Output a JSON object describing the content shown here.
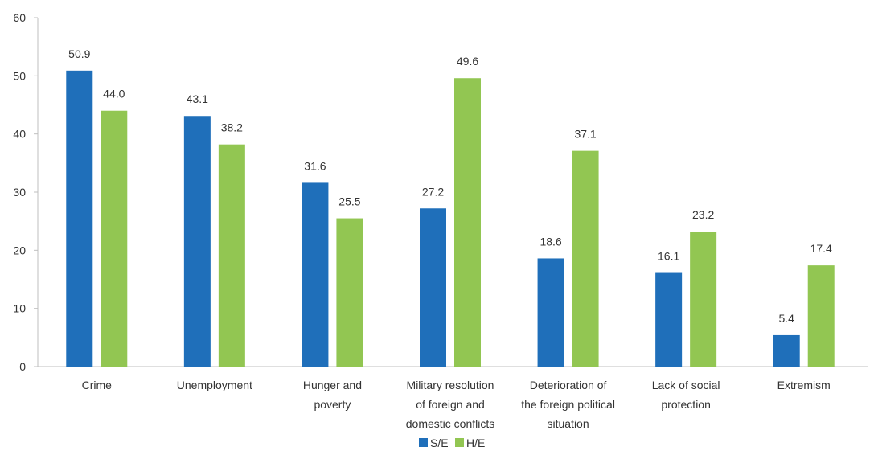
{
  "chart_data": {
    "type": "bar",
    "title": "",
    "xlabel": "",
    "ylabel": "",
    "ylim": [
      0,
      60
    ],
    "yticks": [
      0,
      10,
      20,
      30,
      40,
      50,
      60
    ],
    "grid": false,
    "legend_position": "bottom",
    "categories": [
      [
        "Crime"
      ],
      [
        "Unemployment"
      ],
      [
        "Hunger and",
        "poverty"
      ],
      [
        "Military resolution",
        "of foreign and",
        "domestic conflicts"
      ],
      [
        "Deterioration of",
        "the foreign political",
        "situation"
      ],
      [
        "Lack of social",
        "protection"
      ],
      [
        "Extremism"
      ]
    ],
    "series": [
      {
        "name": "S/E",
        "color": "#1f6fba",
        "values": [
          50.9,
          43.1,
          31.6,
          27.2,
          18.6,
          16.1,
          5.4
        ],
        "labels": [
          "50.9",
          "43.1",
          "31.6",
          "27.2",
          "18.6",
          "16.1",
          "5.4"
        ]
      },
      {
        "name": "H/E",
        "color": "#92c652",
        "values": [
          44.0,
          38.2,
          25.5,
          49.6,
          37.1,
          23.2,
          17.4
        ],
        "labels": [
          "44.0",
          "38.2",
          "25.5",
          "49.6",
          "37.1",
          "23.2",
          "17.4"
        ]
      }
    ]
  }
}
